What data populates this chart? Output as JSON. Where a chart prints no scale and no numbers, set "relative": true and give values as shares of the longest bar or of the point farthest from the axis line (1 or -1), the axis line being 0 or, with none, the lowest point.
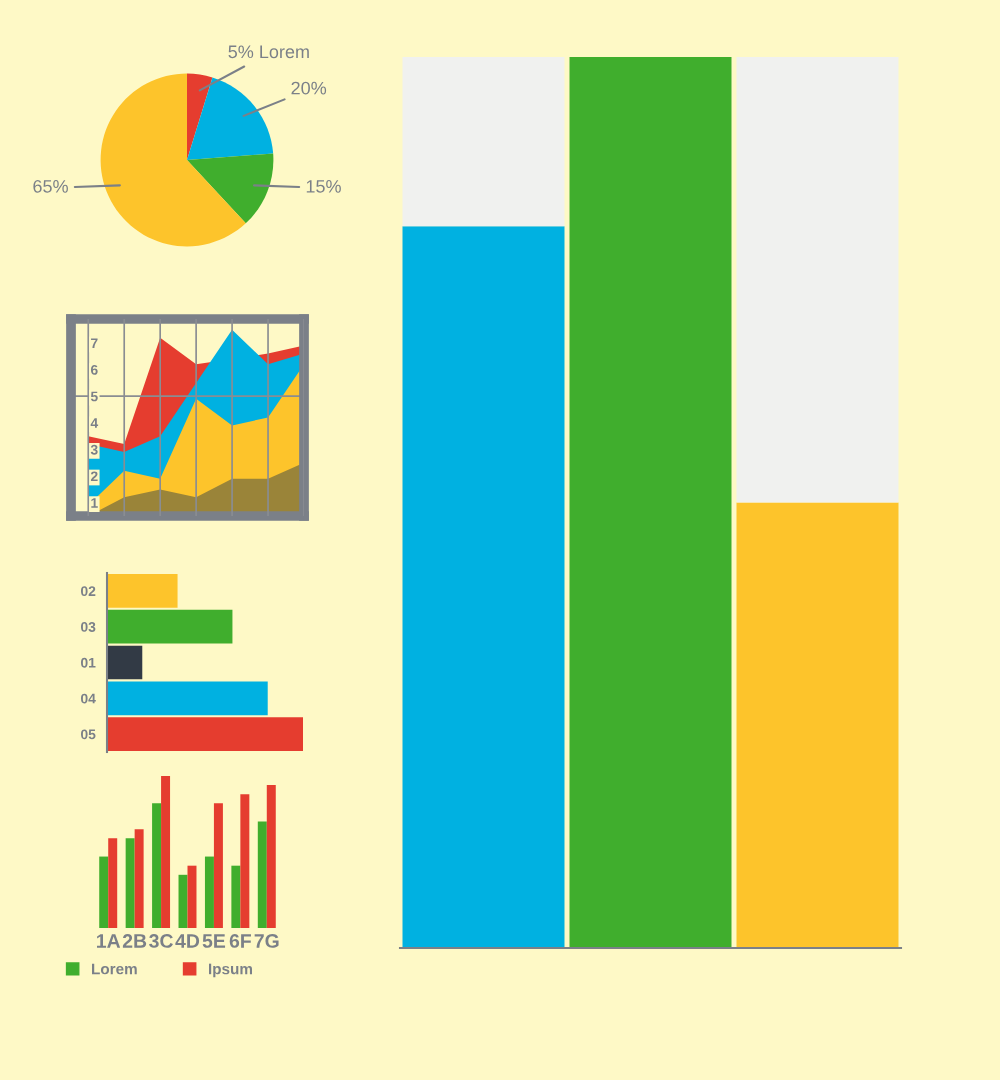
{
  "chart_data": [
    {
      "type": "pie",
      "categories": [
        null,
        null,
        null,
        null
      ],
      "values": [
        5,
        20,
        15,
        65
      ],
      "colors": [
        "#e53d2f",
        "#00b1e1",
        "#40ae2d",
        "#fdc42b"
      ],
      "value_labels": [
        "5% Lorem",
        "20%",
        "15%",
        "65%"
      ]
    },
    {
      "type": "area",
      "categories": [
        null,
        null,
        null,
        null,
        null,
        null,
        null
      ],
      "ylim": [
        0.5,
        7.9
      ],
      "yticks": [
        1,
        2,
        3,
        4,
        5,
        6,
        7
      ],
      "grid": "x",
      "tick_labels": "y",
      "ref_lines": [
        {
          "axis": "y",
          "value": 5,
          "color": "#8a8d92"
        }
      ],
      "series": [
        {
          "color": "#e53d2f",
          "values": [
            3.5,
            3.2,
            7.2,
            6.2,
            null,
            6.6,
            6.9
          ]
        },
        {
          "color": "#00b1e1",
          "values": [
            3.2,
            2.9,
            3.5,
            null,
            7.5,
            6.2,
            6.6
          ]
        },
        {
          "color": "#fdc42b",
          "values": [
            0.9,
            2.2,
            1.9,
            4.9,
            3.9,
            4.2,
            6.2
          ]
        },
        {
          "color": "#9a8439",
          "values": [
            0.5,
            1.2,
            1.5,
            1.2,
            1.9,
            1.9,
            2.5
          ]
        }
      ]
    },
    {
      "type": "bar",
      "orientation": "horizontal",
      "relative": true,
      "categories": [
        "02",
        "03",
        "01",
        "04",
        "05"
      ],
      "values": [
        0.36,
        0.64,
        0.18,
        0.82,
        1
      ],
      "colors": [
        "#fdc42b",
        "#40ae2d",
        "#323a45",
        "#00b1e1",
        "#e53d2f"
      ]
    },
    {
      "type": "bar",
      "relative": true,
      "categories": [
        "1A",
        "2B",
        "3C",
        "4D",
        "5E",
        "6F",
        "7G"
      ],
      "legend": "bottom",
      "series": [
        {
          "name": "Lorem",
          "color": "#40ae2d",
          "values": [
            0.47,
            0.59,
            0.82,
            0.35,
            0.47,
            0.41,
            0.7
          ]
        },
        {
          "name": "Ipsum",
          "color": "#e53d2f",
          "values": [
            0.59,
            0.65,
            1,
            0.41,
            0.82,
            0.88,
            0.94
          ]
        }
      ]
    },
    {
      "type": "bar",
      "relative": true,
      "stacked": true,
      "categories": [
        null,
        null,
        null
      ],
      "series": [
        {
          "colors": [
            "#00b1e1",
            "#40ae2d",
            "#fdc42b"
          ],
          "values": [
            0.81,
            1,
            0.5
          ]
        },
        {
          "colors": [
            "#f0f1ef",
            "#f0f1ef",
            "#f0f1ef"
          ],
          "values": [
            0.19,
            0,
            0.5
          ]
        }
      ]
    }
  ]
}
